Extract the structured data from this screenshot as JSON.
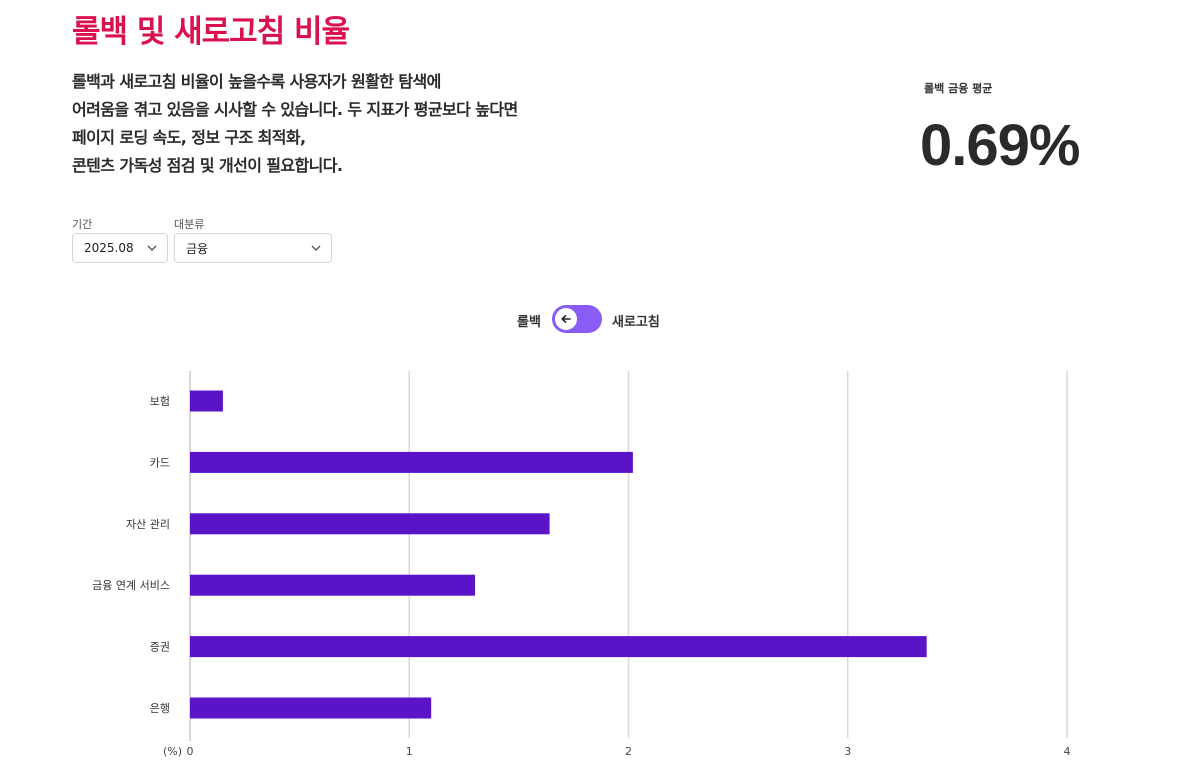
{
  "header": {
    "title": "롤백 및 새로고침 비율",
    "description_lines": [
      "롤백과 새로고침 비율이 높을수록 사용자가 원활한 탐색에",
      "어려움을 겪고 있음을 시사할 수 있습니다. 두 지표가 평균보다 높다면",
      "페이지 로딩 속도, 정보 구조 최적화,",
      "콘텐츠 가독성 점검 및 개선이 필요합니다."
    ]
  },
  "stat": {
    "label": "롤백 금융 평균",
    "value": "0.69%"
  },
  "filters": {
    "period": {
      "label": "기간",
      "value": "2025.08"
    },
    "category": {
      "label": "대분류",
      "value": "금융"
    }
  },
  "toggle": {
    "left_label": "롤백",
    "right_label": "새로고침",
    "icon": "arrow-left-icon"
  },
  "colors": {
    "title": "#d9114f",
    "bar": "#5b13c7",
    "toggle": "#8a5cf6",
    "grid": "#d9d9d9"
  },
  "chart_data": {
    "type": "bar",
    "orientation": "horizontal",
    "categories": [
      "보험",
      "카드",
      "자산 관리",
      "금융 연계 서비스",
      "증권",
      "은행"
    ],
    "values": [
      0.15,
      2.02,
      1.64,
      1.3,
      3.36,
      1.1
    ],
    "xlim": [
      0,
      4
    ],
    "xticks": [
      "0",
      "1",
      "2",
      "3",
      "4"
    ],
    "unit_label": "(%)",
    "grid": true
  }
}
